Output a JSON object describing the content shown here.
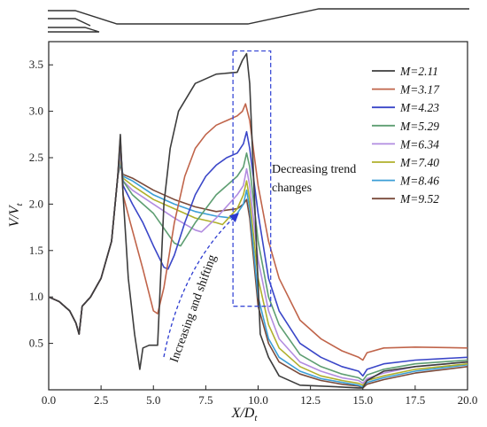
{
  "chart_data": {
    "type": "line",
    "xlabel_main": "X/D",
    "xlabel_sub": "t",
    "ylabel_main": "V/V",
    "ylabel_sub": "t",
    "xlim": [
      0,
      20
    ],
    "ylim": [
      0,
      3.75
    ],
    "xticks": [
      "0.0",
      "2.5",
      "5.0",
      "7.5",
      "10.0",
      "12.5",
      "15.0",
      "17.5",
      "20.0"
    ],
    "yticks": [
      "0.5",
      "1.0",
      "1.5",
      "2.0",
      "2.5",
      "3.0",
      "3.5"
    ],
    "grid": false,
    "legend_position": "top-right",
    "annotations": {
      "box_text_line1": "Decreasing trend",
      "box_text_line2": "changes",
      "arrow_text": "Increasing and shifting",
      "box_xrange": [
        8.8,
        10.6
      ],
      "box_yrange": [
        0.9,
        3.65
      ]
    },
    "series": [
      {
        "name": "M=2.11",
        "color": "#3d3d3d",
        "x": [
          0,
          0.5,
          1.0,
          1.3,
          1.45,
          1.6,
          2.0,
          2.5,
          3.0,
          3.3,
          3.42,
          3.55,
          3.8,
          4.1,
          4.35,
          4.5,
          4.8,
          5.2,
          5.5,
          5.8,
          6.2,
          7.0,
          8.0,
          9.0,
          9.25,
          9.45,
          9.6,
          9.8,
          10.1,
          10.5,
          11.0,
          12.0,
          13.0,
          14.0,
          14.8,
          15.0,
          15.2,
          16.0,
          17.5,
          20.0
        ],
        "y": [
          1.0,
          0.95,
          0.85,
          0.72,
          0.6,
          0.9,
          1.0,
          1.2,
          1.6,
          2.3,
          2.75,
          2.1,
          1.2,
          0.6,
          0.22,
          0.45,
          0.48,
          0.48,
          2.0,
          2.6,
          3.0,
          3.3,
          3.4,
          3.42,
          3.55,
          3.62,
          3.3,
          2.2,
          0.6,
          0.35,
          0.15,
          0.05,
          0.04,
          0.03,
          0.02,
          0.02,
          0.1,
          0.2,
          0.25,
          0.3
        ]
      },
      {
        "name": "M=3.17",
        "color": "#c0644a",
        "x": [
          0,
          0.5,
          1.0,
          1.3,
          1.45,
          1.6,
          2.0,
          2.5,
          3.0,
          3.3,
          3.42,
          3.55,
          3.9,
          4.5,
          5.0,
          5.2,
          5.5,
          6.0,
          6.5,
          7.0,
          7.5,
          8.0,
          8.5,
          9.0,
          9.25,
          9.4,
          9.6,
          10.0,
          10.5,
          11.0,
          12.0,
          13.0,
          14.0,
          14.8,
          15.0,
          15.2,
          16.0,
          17.5,
          20.0
        ],
        "y": [
          1.0,
          0.95,
          0.85,
          0.72,
          0.6,
          0.9,
          1.0,
          1.2,
          1.6,
          2.3,
          2.72,
          2.1,
          1.8,
          1.3,
          0.85,
          0.82,
          1.1,
          1.8,
          2.3,
          2.6,
          2.75,
          2.85,
          2.9,
          2.95,
          3.0,
          3.08,
          2.9,
          2.2,
          1.6,
          1.2,
          0.75,
          0.55,
          0.42,
          0.35,
          0.32,
          0.4,
          0.45,
          0.46,
          0.45
        ]
      },
      {
        "name": "M=4.23",
        "color": "#3a46c8",
        "x": [
          0,
          0.5,
          1.0,
          1.3,
          1.45,
          1.6,
          2.0,
          2.5,
          3.0,
          3.3,
          3.42,
          3.55,
          4.0,
          4.5,
          5.0,
          5.5,
          5.7,
          6.0,
          6.5,
          7.0,
          7.5,
          8.0,
          8.5,
          9.0,
          9.3,
          9.45,
          9.6,
          10.0,
          10.5,
          11.0,
          12.0,
          13.0,
          14.0,
          14.8,
          15.0,
          15.2,
          16.0,
          17.5,
          20.0
        ],
        "y": [
          1.0,
          0.95,
          0.85,
          0.72,
          0.6,
          0.9,
          1.0,
          1.2,
          1.6,
          2.3,
          2.68,
          2.2,
          2.0,
          1.8,
          1.55,
          1.32,
          1.3,
          1.45,
          1.8,
          2.1,
          2.3,
          2.42,
          2.5,
          2.55,
          2.65,
          2.78,
          2.6,
          1.9,
          1.2,
          0.85,
          0.5,
          0.35,
          0.25,
          0.2,
          0.15,
          0.22,
          0.28,
          0.32,
          0.35
        ]
      },
      {
        "name": "M=5.29",
        "color": "#5e9e72",
        "x": [
          0,
          0.5,
          1.0,
          1.3,
          1.45,
          1.6,
          2.0,
          2.5,
          3.0,
          3.3,
          3.42,
          3.55,
          4.0,
          5.0,
          6.0,
          6.3,
          7.0,
          8.0,
          9.0,
          9.3,
          9.45,
          9.6,
          10.0,
          10.5,
          11.0,
          12.0,
          13.0,
          14.0,
          14.8,
          15.0,
          15.2,
          16.0,
          17.5,
          20.0
        ],
        "y": [
          1.0,
          0.95,
          0.85,
          0.72,
          0.6,
          0.9,
          1.0,
          1.2,
          1.6,
          2.3,
          2.62,
          2.25,
          2.1,
          1.9,
          1.58,
          1.55,
          1.8,
          2.1,
          2.3,
          2.4,
          2.55,
          2.4,
          1.6,
          1.0,
          0.7,
          0.38,
          0.25,
          0.17,
          0.13,
          0.1,
          0.16,
          0.22,
          0.28,
          0.32
        ]
      },
      {
        "name": "M=6.34",
        "color": "#b28ce0",
        "x": [
          0,
          0.5,
          1.0,
          1.3,
          1.45,
          1.6,
          2.0,
          2.5,
          3.0,
          3.3,
          3.42,
          3.55,
          4.0,
          5.0,
          6.0,
          7.0,
          7.3,
          8.0,
          9.0,
          9.3,
          9.45,
          9.6,
          10.0,
          10.5,
          11.0,
          12.0,
          13.0,
          14.0,
          14.8,
          15.0,
          15.2,
          16.0,
          17.5,
          20.0
        ],
        "y": [
          1.0,
          0.95,
          0.85,
          0.72,
          0.6,
          0.9,
          1.0,
          1.2,
          1.6,
          2.3,
          2.55,
          2.25,
          2.15,
          2.0,
          1.85,
          1.72,
          1.7,
          1.85,
          2.1,
          2.2,
          2.38,
          2.2,
          1.4,
          0.85,
          0.55,
          0.3,
          0.2,
          0.13,
          0.1,
          0.07,
          0.12,
          0.18,
          0.25,
          0.3
        ]
      },
      {
        "name": "M=7.40",
        "color": "#b0b02c",
        "x": [
          0,
          0.5,
          1.0,
          1.3,
          1.45,
          1.6,
          2.0,
          2.5,
          3.0,
          3.3,
          3.42,
          3.55,
          4.0,
          5.0,
          6.0,
          7.0,
          8.0,
          8.3,
          9.0,
          9.3,
          9.45,
          9.6,
          10.0,
          10.5,
          11.0,
          12.0,
          13.0,
          14.0,
          14.8,
          15.0,
          15.2,
          16.0,
          17.5,
          20.0
        ],
        "y": [
          1.0,
          0.95,
          0.85,
          0.72,
          0.6,
          0.9,
          1.0,
          1.2,
          1.6,
          2.3,
          2.5,
          2.28,
          2.2,
          2.05,
          1.95,
          1.85,
          1.8,
          1.78,
          1.95,
          2.1,
          2.25,
          2.05,
          1.2,
          0.7,
          0.45,
          0.25,
          0.15,
          0.1,
          0.07,
          0.05,
          0.1,
          0.15,
          0.22,
          0.28
        ]
      },
      {
        "name": "M=8.46",
        "color": "#3b9ed6",
        "x": [
          0,
          0.5,
          1.0,
          1.3,
          1.45,
          1.6,
          2.0,
          2.5,
          3.0,
          3.3,
          3.42,
          3.55,
          4.0,
          5.0,
          6.0,
          7.0,
          8.0,
          8.7,
          9.0,
          9.3,
          9.45,
          9.6,
          10.0,
          10.5,
          11.0,
          12.0,
          13.0,
          14.0,
          14.8,
          15.0,
          15.2,
          16.0,
          17.5,
          20.0
        ],
        "y": [
          1.0,
          0.95,
          0.85,
          0.72,
          0.6,
          0.9,
          1.0,
          1.2,
          1.6,
          2.3,
          2.45,
          2.3,
          2.25,
          2.1,
          2.0,
          1.92,
          1.87,
          1.85,
          1.9,
          2.0,
          2.15,
          1.95,
          1.0,
          0.55,
          0.35,
          0.2,
          0.12,
          0.08,
          0.05,
          0.03,
          0.08,
          0.13,
          0.2,
          0.27
        ]
      },
      {
        "name": "M=9.52",
        "color": "#7a4a3a",
        "x": [
          0,
          0.5,
          1.0,
          1.3,
          1.45,
          1.6,
          2.0,
          2.5,
          3.0,
          3.3,
          3.42,
          3.55,
          4.0,
          5.0,
          6.0,
          7.0,
          8.0,
          9.0,
          9.3,
          9.45,
          9.6,
          10.0,
          10.5,
          11.0,
          12.0,
          13.0,
          14.0,
          14.8,
          15.0,
          15.2,
          16.0,
          17.5,
          20.0
        ],
        "y": [
          1.0,
          0.95,
          0.85,
          0.72,
          0.6,
          0.9,
          1.0,
          1.2,
          1.6,
          2.3,
          2.42,
          2.32,
          2.28,
          2.15,
          2.05,
          1.97,
          1.92,
          1.95,
          2.0,
          2.05,
          1.85,
          0.9,
          0.5,
          0.3,
          0.17,
          0.1,
          0.06,
          0.04,
          0.02,
          0.06,
          0.11,
          0.18,
          0.25
        ]
      }
    ]
  }
}
